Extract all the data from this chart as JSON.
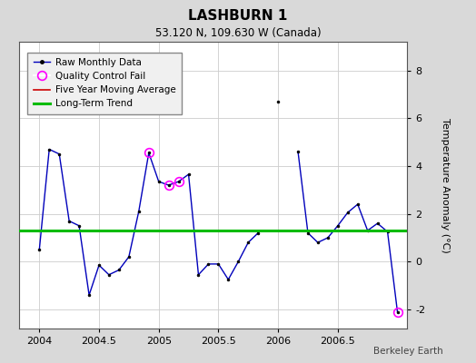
{
  "title": "LASHBURN 1",
  "subtitle": "53.120 N, 109.630 W (Canada)",
  "ylabel": "Temperature Anomaly (°C)",
  "credit": "Berkeley Earth",
  "xlim": [
    2003.83,
    2007.08
  ],
  "ylim": [
    -2.8,
    9.2
  ],
  "yticks": [
    -2,
    0,
    2,
    4,
    6,
    8
  ],
  "xticks": [
    2004,
    2004.5,
    2005,
    2005.5,
    2006,
    2006.5
  ],
  "xticklabels": [
    "2004",
    "2004.5",
    "2005",
    "2005.5",
    "2006",
    "2006.5"
  ],
  "long_term_trend_y": 1.3,
  "background_color": "#d9d9d9",
  "plot_bg_color": "#ffffff",
  "line_color": "#0000bb",
  "marker_color": "#000000",
  "qc_fail_color": "#ff00ff",
  "trend_color": "#00bb00",
  "moving_avg_color": "#cc0000",
  "raw_data": [
    [
      2004.0,
      0.5
    ],
    [
      2004.083,
      4.7
    ],
    [
      2004.167,
      4.5
    ],
    [
      2004.25,
      1.7
    ],
    [
      2004.333,
      1.5
    ],
    [
      2004.417,
      -1.4
    ],
    [
      2004.5,
      -0.15
    ],
    [
      2004.583,
      -0.55
    ],
    [
      2004.667,
      -0.35
    ],
    [
      2004.75,
      0.2
    ],
    [
      2004.833,
      2.1
    ],
    [
      2004.917,
      4.55
    ],
    [
      2005.0,
      3.35
    ],
    [
      2005.083,
      3.2
    ],
    [
      2005.167,
      3.35
    ],
    [
      2005.25,
      3.65
    ],
    [
      2005.333,
      -0.55
    ],
    [
      2005.417,
      -0.1
    ],
    [
      2005.5,
      -0.1
    ],
    [
      2005.583,
      -0.75
    ],
    [
      2005.667,
      0.0
    ],
    [
      2005.75,
      0.8
    ],
    [
      2005.833,
      1.2
    ],
    [
      2006.167,
      4.6
    ],
    [
      2006.25,
      1.2
    ],
    [
      2006.333,
      0.8
    ],
    [
      2006.417,
      1.0
    ],
    [
      2006.5,
      1.5
    ],
    [
      2006.583,
      2.05
    ],
    [
      2006.667,
      2.4
    ],
    [
      2006.75,
      1.3
    ],
    [
      2006.833,
      1.6
    ],
    [
      2006.917,
      1.25
    ],
    [
      2007.0,
      -2.1
    ]
  ],
  "isolated_point": [
    2006.0,
    6.7
  ],
  "qc_fail_points": [
    [
      2004.917,
      4.55
    ],
    [
      2005.083,
      3.2
    ],
    [
      2005.167,
      3.35
    ],
    [
      2007.0,
      -2.1
    ]
  ]
}
